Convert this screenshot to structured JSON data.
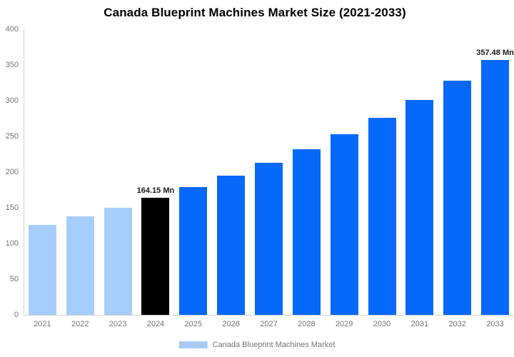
{
  "title": "Canada Blueprint Machines Market Size (2021-2033)",
  "legend": {
    "label": "Canada Blueprint Machines Market",
    "swatch_color": "#a8cbf5"
  },
  "colors": {
    "historical_bar": "#a6cefc",
    "base_year_bar": "#000000",
    "forecast_bar": "#0768fc",
    "axis_line": "#d4d4d4",
    "tick_text": "#757575",
    "annotation_text": "#1a1a1a",
    "title_text": "#000000",
    "background": "#ffffff"
  },
  "chart_data": {
    "type": "bar",
    "title": "Canada Blueprint Machines Market Size (2021-2033)",
    "xlabel": "",
    "ylabel": "",
    "categories": [
      "2021",
      "2022",
      "2023",
      "2024",
      "2025",
      "2026",
      "2027",
      "2028",
      "2029",
      "2030",
      "2031",
      "2032",
      "2033"
    ],
    "values": [
      126.4,
      137.8,
      150.3,
      164.15,
      179.0,
      195.2,
      212.8,
      232.0,
      253.0,
      275.9,
      300.8,
      328.0,
      357.48
    ],
    "bar_colors": [
      "#a6cefc",
      "#a6cefc",
      "#a6cefc",
      "#000000",
      "#0768fc",
      "#0768fc",
      "#0768fc",
      "#0768fc",
      "#0768fc",
      "#0768fc",
      "#0768fc",
      "#0768fc",
      "#0768fc"
    ],
    "y_ticks": [
      0,
      50,
      100,
      150,
      200,
      250,
      300,
      350,
      400
    ],
    "ylim": [
      0,
      400
    ],
    "grid": false,
    "annotations": [
      {
        "category": "2024",
        "text": "164.15 Mn"
      },
      {
        "category": "2033",
        "text": "357.48 Mn"
      }
    ],
    "legend_entries": [
      "Canada Blueprint Machines Market"
    ],
    "legend_position": "bottom-center",
    "unit": "Mn"
  }
}
